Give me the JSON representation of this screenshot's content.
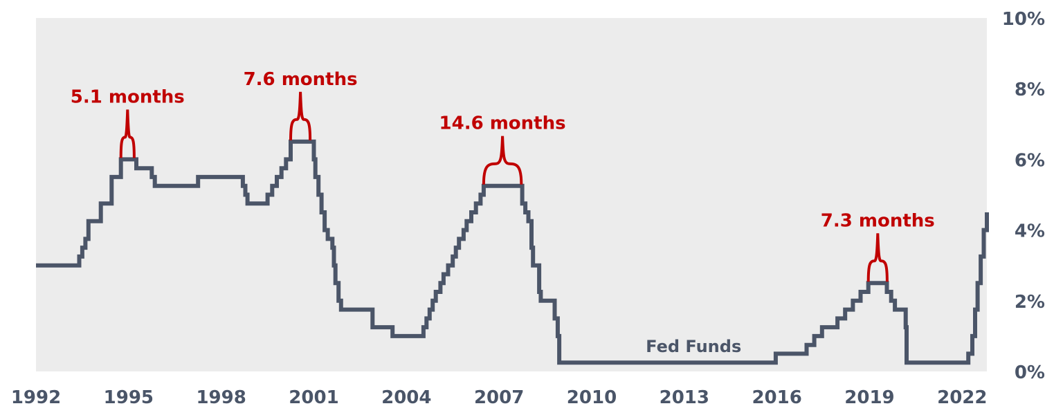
{
  "chart_data": {
    "type": "line",
    "title": "",
    "xlabel": "",
    "ylabel": "",
    "xlim": [
      1992,
      2022.8
    ],
    "ylim": [
      0,
      10
    ],
    "x_ticks": [
      1992,
      1995,
      1998,
      2001,
      2004,
      2007,
      2010,
      2013,
      2016,
      2019,
      2022
    ],
    "x_tick_labels": [
      "1992",
      "1995",
      "1998",
      "2001",
      "2004",
      "2007",
      "2010",
      "2013",
      "2016",
      "2019",
      "2022"
    ],
    "y_ticks": [
      0,
      2,
      4,
      6,
      8,
      10
    ],
    "y_tick_labels": [
      "0%",
      "2%",
      "4%",
      "6%",
      "8%",
      "10%"
    ],
    "y_axis_side": "right",
    "grid": false,
    "background": "#ececec",
    "series": [
      {
        "name": "Fed Funds",
        "color": "#4b5568",
        "step": true,
        "points": [
          [
            1992.0,
            3.0
          ],
          [
            1993.3,
            3.0
          ],
          [
            1993.4,
            3.25
          ],
          [
            1993.5,
            3.5
          ],
          [
            1993.6,
            3.75
          ],
          [
            1993.7,
            4.25
          ],
          [
            1994.0,
            4.25
          ],
          [
            1994.1,
            4.75
          ],
          [
            1994.4,
            4.75
          ],
          [
            1994.45,
            5.5
          ],
          [
            1994.65,
            5.5
          ],
          [
            1994.75,
            6.0
          ],
          [
            1995.2,
            6.0
          ],
          [
            1995.25,
            5.75
          ],
          [
            1995.65,
            5.75
          ],
          [
            1995.75,
            5.5
          ],
          [
            1995.85,
            5.25
          ],
          [
            1997.2,
            5.25
          ],
          [
            1997.25,
            5.5
          ],
          [
            1998.6,
            5.5
          ],
          [
            1998.7,
            5.25
          ],
          [
            1998.78,
            5.0
          ],
          [
            1998.85,
            4.75
          ],
          [
            1999.4,
            4.75
          ],
          [
            1999.5,
            5.0
          ],
          [
            1999.65,
            5.25
          ],
          [
            1999.8,
            5.5
          ],
          [
            1999.95,
            5.75
          ],
          [
            2000.1,
            6.0
          ],
          [
            2000.25,
            6.5
          ],
          [
            2000.87,
            6.5
          ],
          [
            2001.0,
            6.0
          ],
          [
            2001.05,
            5.5
          ],
          [
            2001.15,
            5.0
          ],
          [
            2001.25,
            4.5
          ],
          [
            2001.35,
            4.0
          ],
          [
            2001.45,
            3.75
          ],
          [
            2001.6,
            3.5
          ],
          [
            2001.65,
            3.0
          ],
          [
            2001.7,
            2.5
          ],
          [
            2001.8,
            2.0
          ],
          [
            2001.88,
            1.75
          ],
          [
            2002.85,
            1.75
          ],
          [
            2002.9,
            1.25
          ],
          [
            2003.5,
            1.25
          ],
          [
            2003.55,
            1.0
          ],
          [
            2004.45,
            1.0
          ],
          [
            2004.55,
            1.25
          ],
          [
            2004.65,
            1.5
          ],
          [
            2004.75,
            1.75
          ],
          [
            2004.85,
            2.0
          ],
          [
            2004.95,
            2.25
          ],
          [
            2005.1,
            2.5
          ],
          [
            2005.2,
            2.75
          ],
          [
            2005.35,
            3.0
          ],
          [
            2005.5,
            3.25
          ],
          [
            2005.6,
            3.5
          ],
          [
            2005.7,
            3.75
          ],
          [
            2005.85,
            4.0
          ],
          [
            2005.95,
            4.25
          ],
          [
            2006.1,
            4.5
          ],
          [
            2006.25,
            4.75
          ],
          [
            2006.4,
            5.0
          ],
          [
            2006.5,
            5.25
          ],
          [
            2007.7,
            5.25
          ],
          [
            2007.75,
            4.75
          ],
          [
            2007.85,
            4.5
          ],
          [
            2007.95,
            4.25
          ],
          [
            2008.05,
            3.5
          ],
          [
            2008.1,
            3.0
          ],
          [
            2008.3,
            2.25
          ],
          [
            2008.35,
            2.0
          ],
          [
            2008.75,
            2.0
          ],
          [
            2008.8,
            1.5
          ],
          [
            2008.9,
            1.0
          ],
          [
            2008.95,
            0.25
          ],
          [
            2015.95,
            0.25
          ],
          [
            2015.96,
            0.5
          ],
          [
            2016.95,
            0.5
          ],
          [
            2016.96,
            0.75
          ],
          [
            2017.2,
            0.75
          ],
          [
            2017.21,
            1.0
          ],
          [
            2017.45,
            1.0
          ],
          [
            2017.46,
            1.25
          ],
          [
            2017.95,
            1.25
          ],
          [
            2017.96,
            1.5
          ],
          [
            2018.2,
            1.5
          ],
          [
            2018.21,
            1.75
          ],
          [
            2018.45,
            1.75
          ],
          [
            2018.46,
            2.0
          ],
          [
            2018.7,
            2.0
          ],
          [
            2018.71,
            2.25
          ],
          [
            2018.95,
            2.25
          ],
          [
            2018.96,
            2.5
          ],
          [
            2019.55,
            2.5
          ],
          [
            2019.56,
            2.25
          ],
          [
            2019.7,
            2.0
          ],
          [
            2019.82,
            1.75
          ],
          [
            2020.15,
            1.75
          ],
          [
            2020.17,
            1.25
          ],
          [
            2020.2,
            0.25
          ],
          [
            2022.15,
            0.25
          ],
          [
            2022.2,
            0.5
          ],
          [
            2022.33,
            1.0
          ],
          [
            2022.42,
            1.75
          ],
          [
            2022.5,
            2.5
          ],
          [
            2022.6,
            3.25
          ],
          [
            2022.7,
            4.0
          ],
          [
            2022.8,
            4.5
          ]
        ]
      }
    ],
    "annotations": [
      {
        "label": "5.1 months",
        "x_start": 1994.75,
        "x_end": 1995.18,
        "y": 6.0,
        "color": "#c00000"
      },
      {
        "label": "7.6 months",
        "x_start": 2000.25,
        "x_end": 2000.88,
        "y": 6.5,
        "color": "#c00000"
      },
      {
        "label": "14.6 months",
        "x_start": 2006.5,
        "x_end": 2007.72,
        "y": 5.25,
        "color": "#c00000"
      },
      {
        "label": "7.3 months",
        "x_start": 2018.96,
        "x_end": 2019.57,
        "y": 2.5,
        "color": "#c00000"
      }
    ]
  }
}
